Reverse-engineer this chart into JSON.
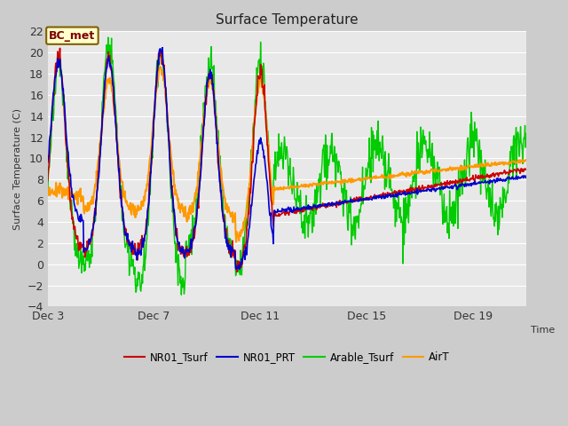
{
  "title": "Surface Temperature",
  "ylabel": "Surface Temperature (C)",
  "xlabel": "Time",
  "xlim_days": [
    3,
    21
  ],
  "ylim": [
    -4,
    22
  ],
  "yticks": [
    -4,
    -2,
    0,
    2,
    4,
    6,
    8,
    10,
    12,
    14,
    16,
    18,
    20,
    22
  ],
  "xtick_days": [
    3,
    7,
    11,
    15,
    19
  ],
  "xtick_labels": [
    "Dec 3",
    "Dec 7",
    "Dec 11",
    "Dec 15",
    "Dec 19"
  ],
  "colors": {
    "NR01_Tsurf": "#cc0000",
    "NR01_PRT": "#0000cc",
    "Arable_Tsurf": "#00cc00",
    "AirT": "#ff9900"
  },
  "annotation_text": "BC_met",
  "annotation_text_color": "#7f0000",
  "annotation_bg": "#ffffcc",
  "annotation_border": "#806000",
  "fig_bg": "#cccccc",
  "plot_bg": "#e8e8e8",
  "grid_color": "#ffffff",
  "legend_labels": [
    "NR01_Tsurf",
    "NR01_PRT",
    "Arable_Tsurf",
    "AirT"
  ]
}
